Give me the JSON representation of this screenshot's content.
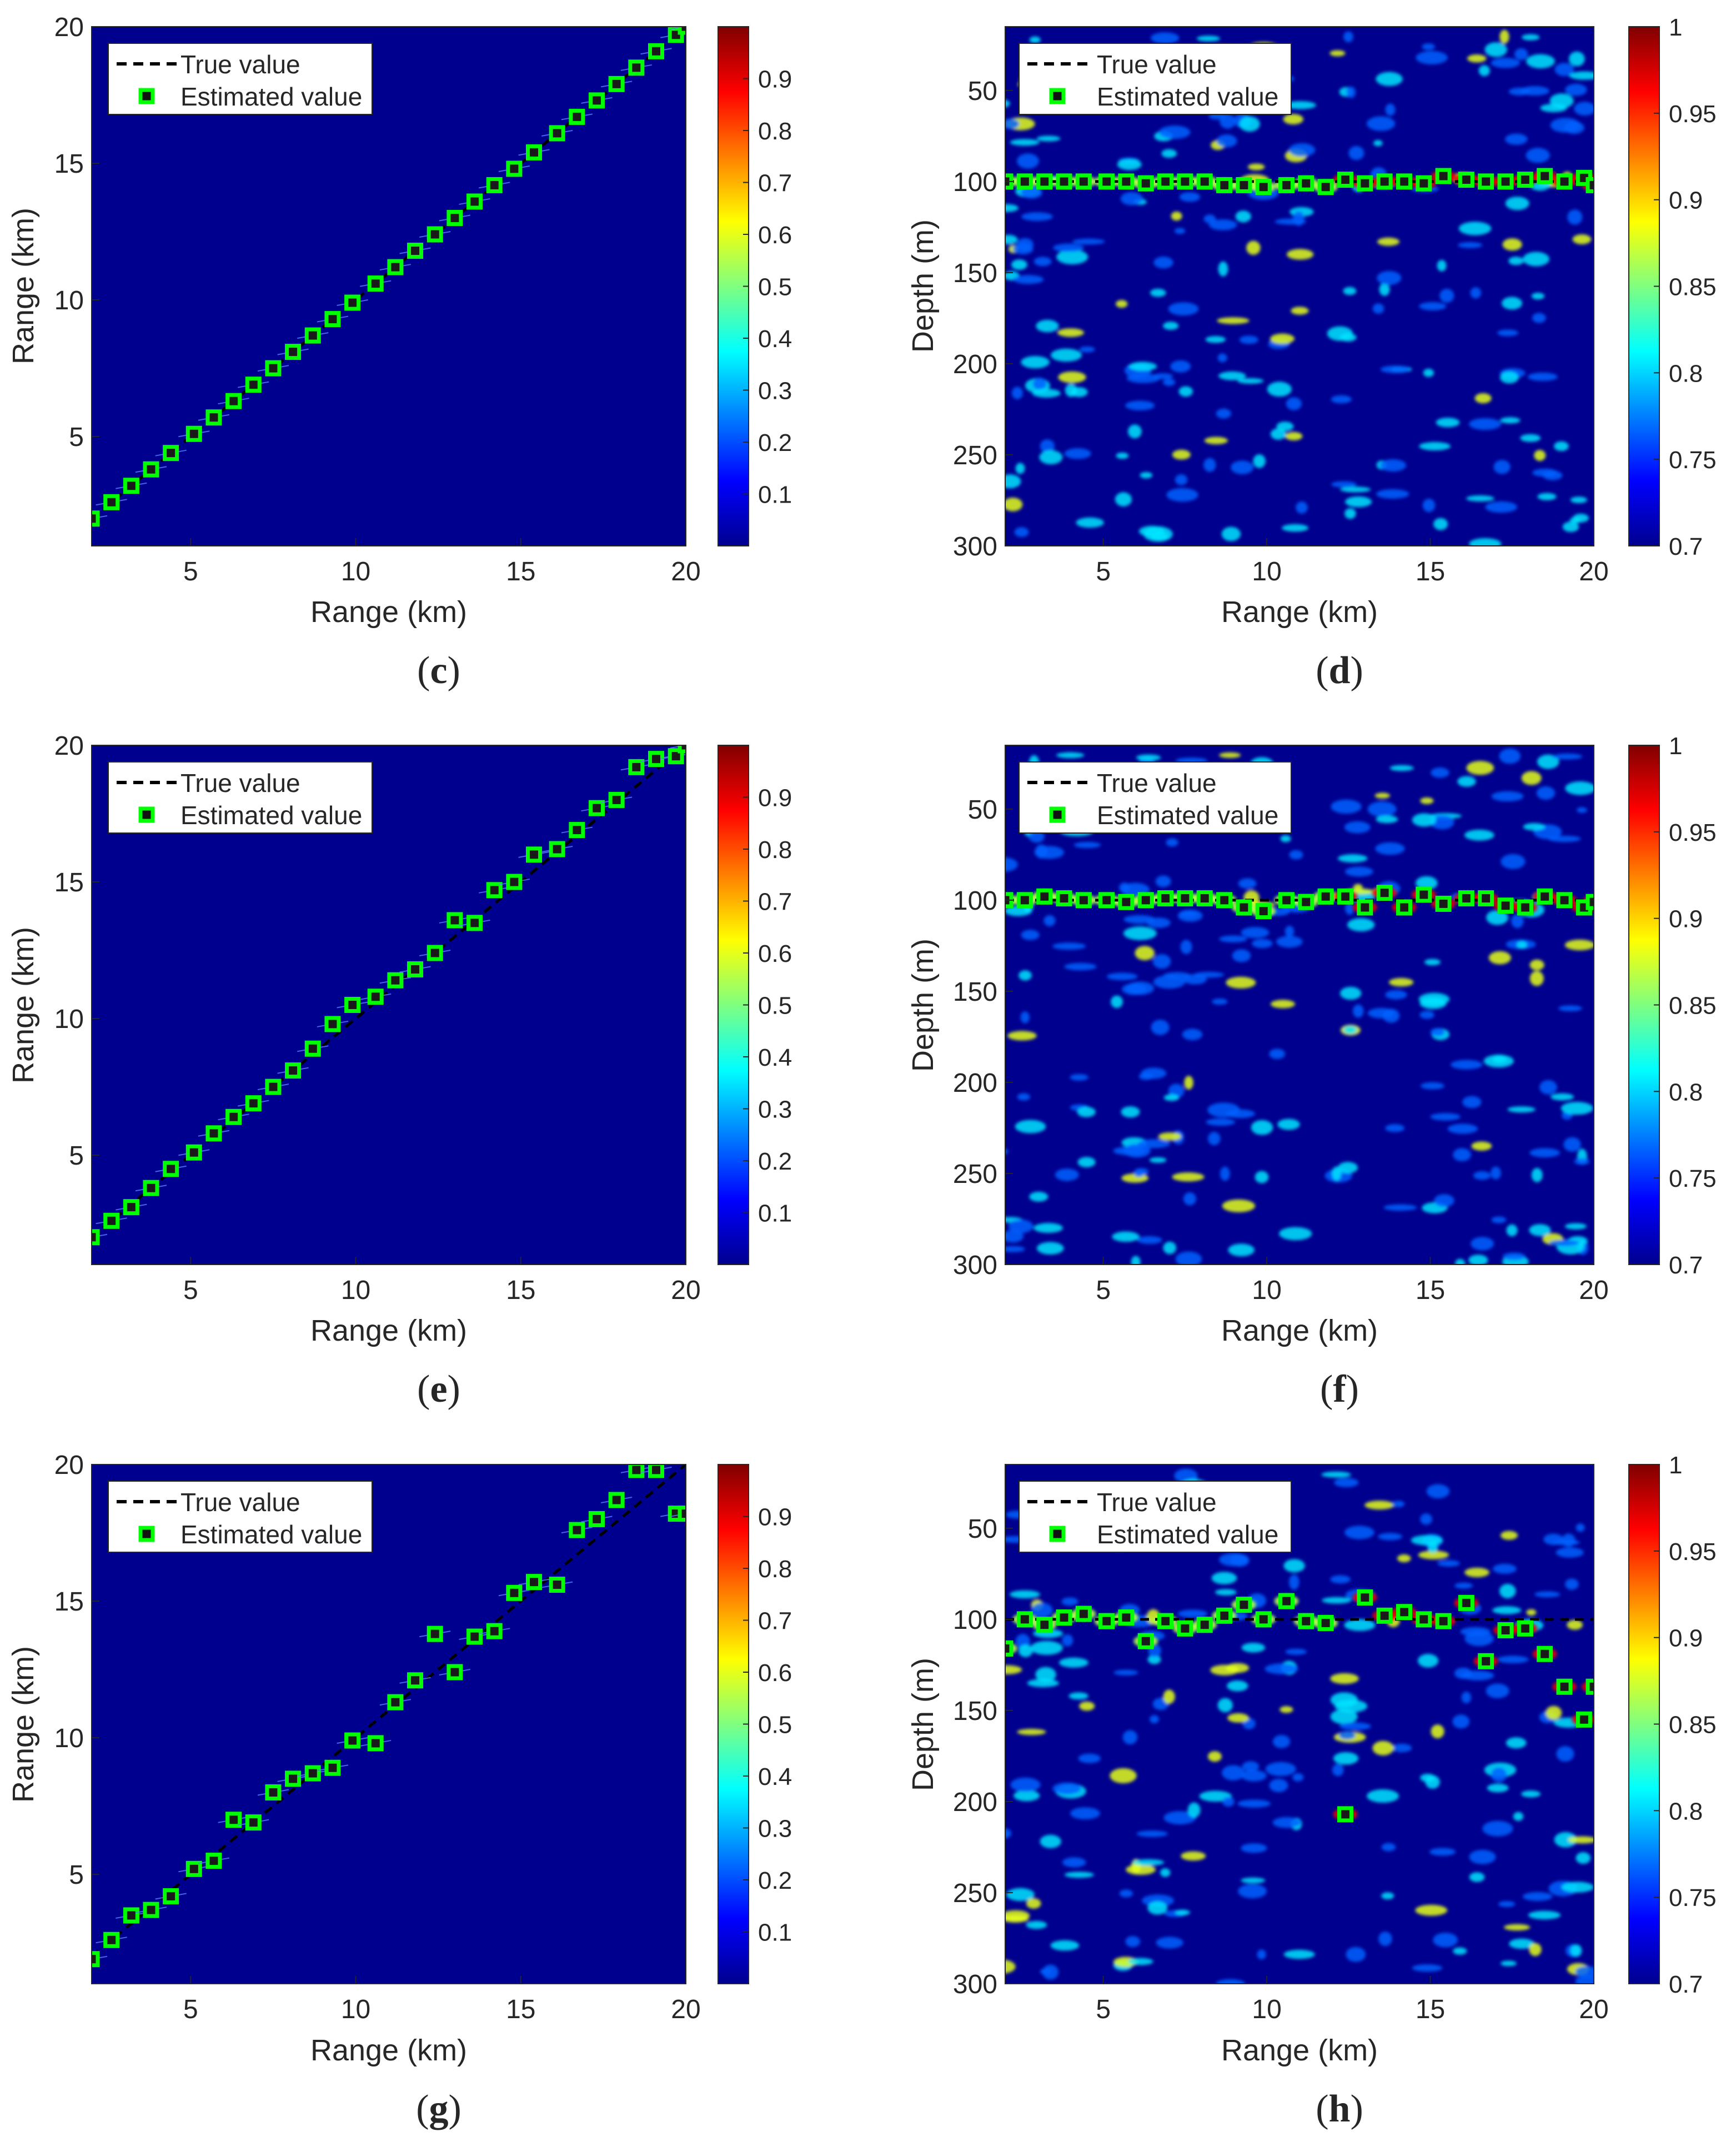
{
  "chart_data": [
    {
      "panel": "c",
      "type": "heatmap",
      "colorscale": "jet",
      "xlabel": "Range (km)",
      "ylabel": "Range (km)",
      "xlim": [
        2,
        20
      ],
      "ylim": [
        1,
        20
      ],
      "y_direction": "normal",
      "xticks": [
        "5",
        "10",
        "15",
        "20"
      ],
      "yticks": [
        "5",
        "10",
        "15",
        "20"
      ],
      "clim": [
        0,
        1
      ],
      "cticks": [
        "0.1",
        "0.2",
        "0.3",
        "0.4",
        "0.5",
        "0.6",
        "0.7",
        "0.8",
        "0.9"
      ],
      "legend": {
        "loc": "top-left",
        "entries": [
          "True value",
          "Estimated value"
        ]
      },
      "true": {
        "x": [
          2,
          20
        ],
        "y": [
          2,
          20
        ]
      },
      "estimated": {
        "x": [
          2.0,
          2.6,
          3.2,
          3.8,
          4.4,
          5.1,
          5.7,
          6.3,
          6.9,
          7.5,
          8.1,
          8.7,
          9.3,
          9.9,
          10.6,
          11.2,
          11.8,
          12.4,
          13.0,
          13.6,
          14.2,
          14.8,
          15.4,
          16.1,
          16.7,
          17.3,
          17.9,
          18.5,
          19.1,
          19.7,
          20.0
        ],
        "y": [
          2.0,
          2.6,
          3.2,
          3.8,
          4.4,
          5.1,
          5.7,
          6.3,
          6.9,
          7.5,
          8.1,
          8.7,
          9.3,
          9.9,
          10.6,
          11.2,
          11.8,
          12.4,
          13.0,
          13.6,
          14.2,
          14.8,
          15.4,
          16.1,
          16.7,
          17.3,
          17.9,
          18.5,
          19.1,
          19.7,
          20.0
        ]
      }
    },
    {
      "panel": "d",
      "type": "heatmap",
      "colorscale": "jet",
      "xlabel": "Range (km)",
      "ylabel": "Depth (m)",
      "xlim": [
        2,
        20
      ],
      "ylim": [
        15,
        300
      ],
      "y_direction": "reverse",
      "xticks": [
        "5",
        "10",
        "15",
        "20"
      ],
      "yticks": [
        "50",
        "100",
        "150",
        "200",
        "250",
        "300"
      ],
      "clim": [
        0.7,
        1
      ],
      "cticks": [
        "0.7",
        "0.75",
        "0.8",
        "0.85",
        "0.9",
        "0.95",
        "1"
      ],
      "legend": {
        "loc": "top-left",
        "entries": [
          "True value",
          "Estimated value"
        ]
      },
      "true": {
        "x": [
          2,
          20
        ],
        "y": [
          100,
          100
        ]
      },
      "estimated": {
        "x": [
          2.0,
          2.6,
          3.2,
          3.8,
          4.4,
          5.1,
          5.7,
          6.3,
          6.9,
          7.5,
          8.1,
          8.7,
          9.3,
          9.9,
          10.6,
          11.2,
          11.8,
          12.4,
          13.0,
          13.6,
          14.2,
          14.8,
          15.4,
          16.1,
          16.7,
          17.3,
          17.9,
          18.5,
          19.1,
          19.7,
          20.0
        ],
        "y": [
          100,
          100,
          100,
          100,
          100,
          100,
          100,
          101,
          100,
          100,
          100,
          102,
          102,
          103,
          102,
          101,
          103,
          99,
          101,
          100,
          100,
          101,
          97,
          99,
          100,
          100,
          99,
          97,
          100,
          98,
          102
        ]
      }
    },
    {
      "panel": "e",
      "type": "heatmap",
      "colorscale": "jet",
      "xlabel": "Range (km)",
      "ylabel": "Range (km)",
      "xlim": [
        2,
        20
      ],
      "ylim": [
        1,
        20
      ],
      "y_direction": "normal",
      "xticks": [
        "5",
        "10",
        "15",
        "20"
      ],
      "yticks": [
        "5",
        "10",
        "15",
        "20"
      ],
      "clim": [
        0,
        1
      ],
      "cticks": [
        "0.1",
        "0.2",
        "0.3",
        "0.4",
        "0.5",
        "0.6",
        "0.7",
        "0.8",
        "0.9"
      ],
      "legend": {
        "loc": "top-left",
        "entries": [
          "True value",
          "Estimated value"
        ]
      },
      "true": {
        "x": [
          2,
          20
        ],
        "y": [
          2,
          20
        ]
      },
      "estimated": {
        "x": [
          2.0,
          2.6,
          3.2,
          3.8,
          4.4,
          5.1,
          5.7,
          6.3,
          6.9,
          7.5,
          8.1,
          8.7,
          9.3,
          9.9,
          10.6,
          11.2,
          11.8,
          12.4,
          13.0,
          13.6,
          14.2,
          14.8,
          15.4,
          16.1,
          16.7,
          17.3,
          17.9,
          18.5,
          19.1,
          19.7,
          20.0
        ],
        "y": [
          2.0,
          2.6,
          3.1,
          3.8,
          4.5,
          5.1,
          5.8,
          6.4,
          6.9,
          7.5,
          8.1,
          8.9,
          9.8,
          10.5,
          10.8,
          11.4,
          11.8,
          12.4,
          13.6,
          13.5,
          14.7,
          15.0,
          16.0,
          16.2,
          16.9,
          17.7,
          18.0,
          19.2,
          19.5,
          19.6,
          20.0
        ]
      }
    },
    {
      "panel": "f",
      "type": "heatmap",
      "colorscale": "jet",
      "xlabel": "Range (km)",
      "ylabel": "Depth (m)",
      "xlim": [
        2,
        20
      ],
      "ylim": [
        15,
        300
      ],
      "y_direction": "reverse",
      "xticks": [
        "5",
        "10",
        "15",
        "20"
      ],
      "yticks": [
        "50",
        "100",
        "150",
        "200",
        "250",
        "300"
      ],
      "clim": [
        0.7,
        1
      ],
      "cticks": [
        "0.7",
        "0.75",
        "0.8",
        "0.85",
        "0.9",
        "0.95",
        "1"
      ],
      "legend": {
        "loc": "top-left",
        "entries": [
          "True value",
          "Estimated value"
        ]
      },
      "true": {
        "x": [
          2,
          20
        ],
        "y": [
          100,
          100
        ]
      },
      "estimated": {
        "x": [
          2.0,
          2.6,
          3.2,
          3.8,
          4.4,
          5.1,
          5.7,
          6.3,
          6.9,
          7.5,
          8.1,
          8.7,
          9.3,
          9.9,
          10.6,
          11.2,
          11.8,
          12.4,
          13.0,
          13.6,
          14.2,
          14.8,
          15.4,
          16.1,
          16.7,
          17.3,
          17.9,
          18.5,
          19.1,
          19.7,
          20.0
        ],
        "y": [
          100,
          100,
          98,
          99,
          100,
          100,
          101,
          100,
          99,
          99,
          99,
          100,
          104,
          106,
          100,
          101,
          98,
          98,
          104,
          96,
          104,
          97,
          102,
          99,
          99,
          103,
          104,
          98,
          100,
          104,
          101
        ]
      }
    },
    {
      "panel": "g",
      "type": "heatmap",
      "colorscale": "jet",
      "xlabel": "Range (km)",
      "ylabel": "Range (km)",
      "xlim": [
        2,
        20
      ],
      "ylim": [
        1,
        20
      ],
      "y_direction": "normal",
      "xticks": [
        "5",
        "10",
        "15",
        "20"
      ],
      "yticks": [
        "5",
        "10",
        "15",
        "20"
      ],
      "clim": [
        0,
        1
      ],
      "cticks": [
        "0.1",
        "0.2",
        "0.3",
        "0.4",
        "0.5",
        "0.6",
        "0.7",
        "0.8",
        "0.9"
      ],
      "legend": {
        "loc": "top-left",
        "entries": [
          "True value",
          "Estimated value"
        ]
      },
      "true": {
        "x": [
          2,
          20
        ],
        "y": [
          2,
          20
        ]
      },
      "estimated": {
        "x": [
          2.0,
          2.6,
          3.2,
          3.8,
          4.4,
          5.1,
          5.7,
          6.3,
          6.9,
          7.5,
          8.1,
          8.7,
          9.3,
          9.9,
          10.6,
          11.2,
          11.8,
          12.4,
          13.0,
          13.6,
          14.2,
          14.8,
          15.4,
          16.1,
          16.7,
          17.3,
          17.9,
          18.5,
          19.1,
          19.7,
          20.0
        ],
        "y": [
          1.9,
          2.6,
          3.5,
          3.7,
          4.2,
          5.2,
          5.5,
          7.0,
          6.9,
          8.0,
          8.5,
          8.7,
          8.9,
          9.9,
          9.8,
          11.3,
          12.1,
          13.8,
          12.4,
          13.7,
          13.9,
          15.3,
          15.7,
          15.6,
          17.6,
          18.0,
          18.7,
          19.8,
          19.8,
          18.2,
          18.2
        ]
      }
    },
    {
      "panel": "h",
      "type": "heatmap",
      "colorscale": "jet",
      "xlabel": "Range (km)",
      "ylabel": "Depth (m)",
      "xlim": [
        2,
        20
      ],
      "ylim": [
        15,
        300
      ],
      "y_direction": "reverse",
      "xticks": [
        "5",
        "10",
        "15",
        "20"
      ],
      "yticks": [
        "50",
        "100",
        "150",
        "200",
        "250",
        "300"
      ],
      "clim": [
        0.7,
        1
      ],
      "cticks": [
        "0.7",
        "0.75",
        "0.8",
        "0.85",
        "0.9",
        "0.95",
        "1"
      ],
      "legend": {
        "loc": "top-left",
        "entries": [
          "True value",
          "Estimated value"
        ]
      },
      "true": {
        "x": [
          2,
          20
        ],
        "y": [
          100,
          100
        ]
      },
      "estimated": {
        "x": [
          2.0,
          2.6,
          3.2,
          3.8,
          4.4,
          5.1,
          5.7,
          6.3,
          6.9,
          7.5,
          8.1,
          8.7,
          9.3,
          9.9,
          10.6,
          11.2,
          11.8,
          12.4,
          13.0,
          13.6,
          14.2,
          14.8,
          15.4,
          16.1,
          16.7,
          17.3,
          17.9,
          18.5,
          19.1,
          19.7,
          20.0
        ],
        "y": [
          116,
          100,
          103,
          99,
          97,
          101,
          99,
          112,
          101,
          105,
          103,
          98,
          92,
          100,
          90,
          101,
          102,
          207,
          88,
          98,
          96,
          100,
          101,
          91,
          123,
          106,
          105,
          119,
          137,
          155,
          137
        ]
      }
    }
  ]
}
